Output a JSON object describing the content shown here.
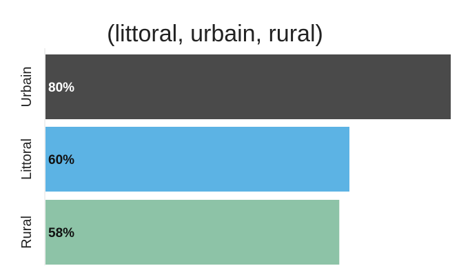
{
  "chart_data": {
    "type": "bar",
    "orientation": "horizontal",
    "title_line_1": "",
    "title_line_2": "(littoral, urbain, rural)",
    "categories": [
      "Urbain",
      "Littoral",
      "Rural"
    ],
    "values": [
      80,
      60,
      58
    ],
    "value_labels": [
      "80%",
      "60%",
      "58%"
    ],
    "xlim": [
      0,
      80
    ],
    "grid": false,
    "legend": "none",
    "colors": [
      "#4a4a4a",
      "#5cb3e4",
      "#8dc3a7"
    ],
    "label_colors": [
      "#ffffff",
      "#111111",
      "#111111"
    ]
  }
}
